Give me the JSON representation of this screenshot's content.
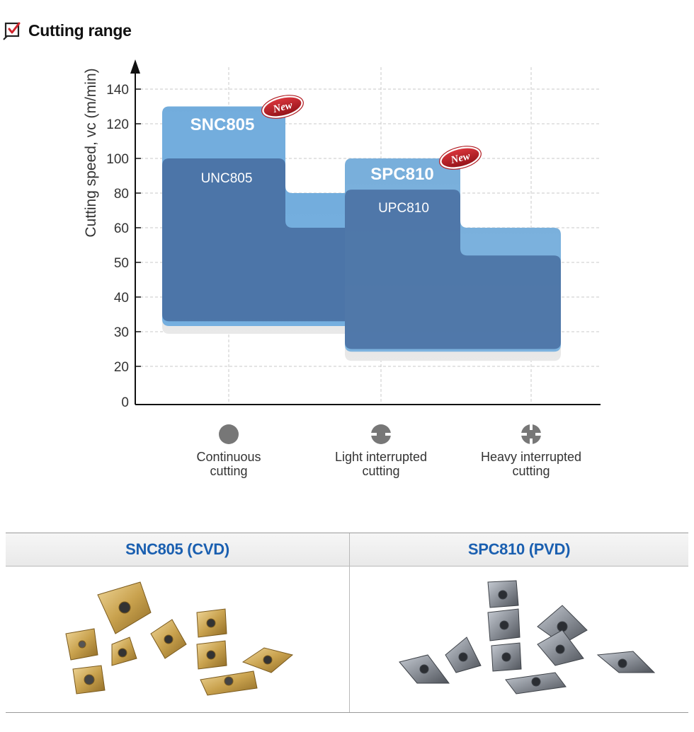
{
  "header": {
    "title": "Cutting range",
    "icon": "checkbox-edit-icon"
  },
  "chart_data": {
    "type": "range-blocks",
    "ylabel": "Cutting speed, vc (m/min)",
    "yticks": [
      0,
      20,
      30,
      40,
      50,
      60,
      80,
      100,
      120,
      140
    ],
    "categories": [
      "Continuous\ncutting",
      "Light interrupted\ncutting",
      "Heavy interrupted\ncutting"
    ],
    "category_icons": [
      "solid-circle-icon",
      "light-interrupted-icon",
      "heavy-interrupted-icon"
    ],
    "grid": true,
    "series": [
      {
        "name": "SNC805",
        "badge": "New",
        "color": "#6aa9dd",
        "ranges": [
          {
            "category": 0,
            "min": 30,
            "max": 130
          },
          {
            "category": 1,
            "min": 30,
            "max": 80
          }
        ]
      },
      {
        "name": "UNC805",
        "color": "#3d5f93",
        "ranges": [
          {
            "category": 0,
            "min": 33,
            "max": 100
          },
          {
            "category": 1,
            "min": 33,
            "max": 60
          }
        ]
      },
      {
        "name": "SPC810",
        "badge": "New",
        "color": "#6aa9dd",
        "ranges": [
          {
            "category": 1,
            "min": 23,
            "max": 100
          },
          {
            "category": 2,
            "min": 23,
            "max": 60
          }
        ]
      },
      {
        "name": "UPC810",
        "color": "#3d5f93",
        "ranges": [
          {
            "category": 1,
            "min": 25,
            "max": 82
          },
          {
            "category": 2,
            "min": 25,
            "max": 52
          }
        ]
      }
    ]
  },
  "table": {
    "columns": [
      {
        "label": "SNC805 (CVD)",
        "image": "gold-cvd-inserts"
      },
      {
        "label": "SPC810 (PVD)",
        "image": "gray-pvd-inserts"
      }
    ],
    "colors": {
      "gold": "#c9a24e",
      "silver": "#8a8f97",
      "header_text": "#1a5fb0"
    }
  }
}
